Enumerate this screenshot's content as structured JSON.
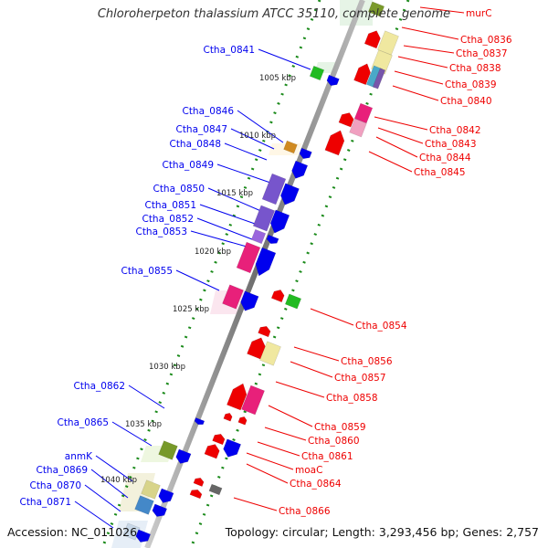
{
  "title": "Chloroherpeton thalassium ATCC 35110, complete genome",
  "footer": {
    "accession": "Accession: NC_011026",
    "topology": "Topology: circular; Length: 3,293,456 bp; Genes: 2,757"
  },
  "colors": {
    "forward": "#0000ee",
    "reverse": "#ee0000",
    "ticks": "#1a8a1a",
    "backbone": "#777777"
  },
  "chart_data": {
    "type": "genome_map",
    "kbp_ticks": [
      "1005 kbp",
      "1010 kbp",
      "1015 kbp",
      "1020 kbp",
      "1025 kbp",
      "1030 kbp",
      "1035 kbp",
      "1040 kbp"
    ],
    "forward_strand_genes": [
      "Ctha_0841",
      "Ctha_0846",
      "Ctha_0847",
      "Ctha_0848",
      "Ctha_0849",
      "Ctha_0850",
      "Ctha_0851",
      "Ctha_0852",
      "Ctha_0853",
      "Ctha_0855",
      "Ctha_0862",
      "Ctha_0865",
      "anmK",
      "Ctha_0869",
      "Ctha_0870",
      "Ctha_0871"
    ],
    "reverse_strand_genes": [
      "murC",
      "Ctha_0836",
      "Ctha_0837",
      "Ctha_0838",
      "Ctha_0839",
      "Ctha_0840",
      "Ctha_0842",
      "Ctha_0843",
      "Ctha_0844",
      "Ctha_0845",
      "Ctha_0854",
      "Ctha_0856",
      "Ctha_0857",
      "Ctha_0858",
      "Ctha_0859",
      "Ctha_0860",
      "Ctha_0861",
      "moaC",
      "Ctha_0864",
      "Ctha_0866"
    ]
  }
}
